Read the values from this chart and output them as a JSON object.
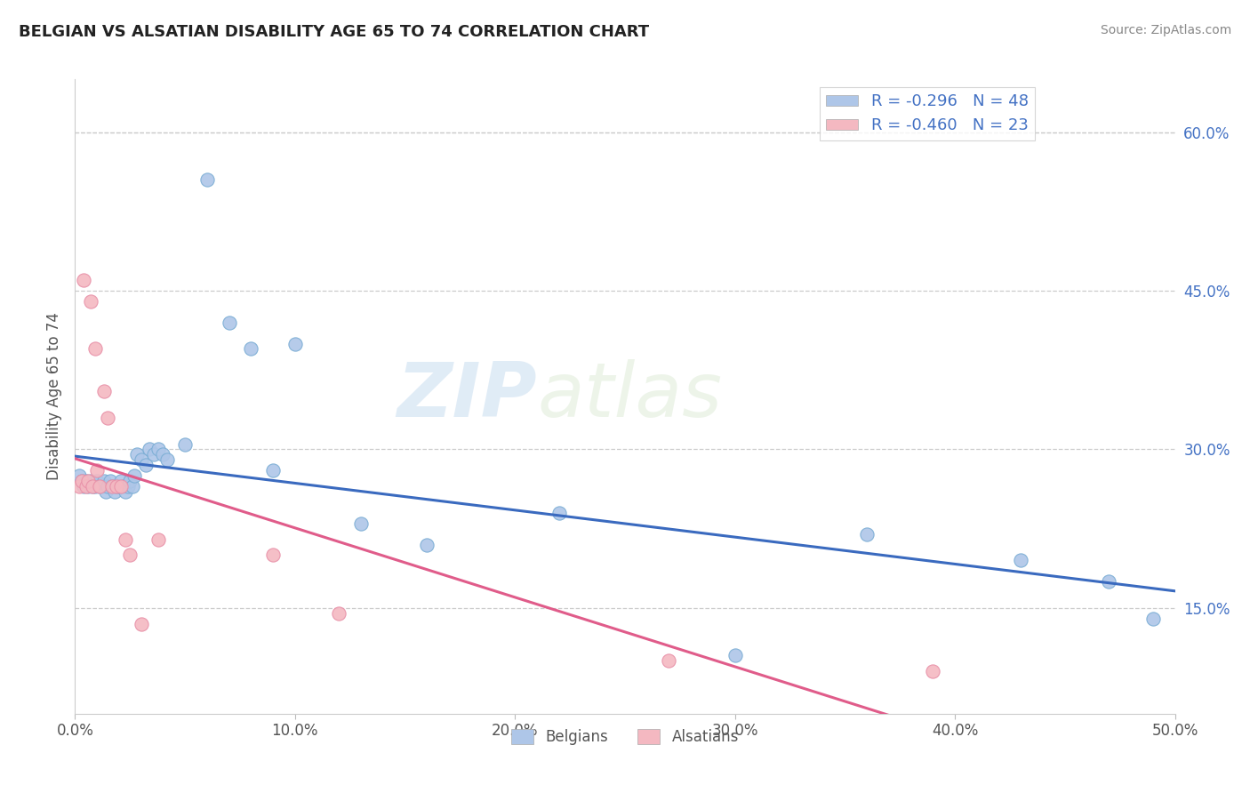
{
  "title": "BELGIAN VS ALSATIAN DISABILITY AGE 65 TO 74 CORRELATION CHART",
  "source": "Source: ZipAtlas.com",
  "ylabel": "Disability Age 65 to 74",
  "xlim": [
    0.0,
    0.5
  ],
  "ylim": [
    0.05,
    0.65
  ],
  "xtick_vals": [
    0.0,
    0.1,
    0.2,
    0.3,
    0.4,
    0.5
  ],
  "ytick_right_values": [
    0.15,
    0.3,
    0.45,
    0.6
  ],
  "legend_labels": [
    "R = -0.296   N = 48",
    "R = -0.460   N = 23"
  ],
  "belgians_color": "#aec6e8",
  "alsatians_color": "#f4b8c1",
  "trend_belgian_color": "#3a6abf",
  "trend_alsatian_color": "#e05c8a",
  "watermark_zip": "ZIP",
  "watermark_atlas": "atlas",
  "belgians_x": [
    0.002,
    0.003,
    0.004,
    0.005,
    0.006,
    0.007,
    0.008,
    0.009,
    0.01,
    0.011,
    0.012,
    0.013,
    0.014,
    0.015,
    0.016,
    0.017,
    0.018,
    0.019,
    0.02,
    0.021,
    0.022,
    0.023,
    0.024,
    0.025,
    0.026,
    0.027,
    0.028,
    0.03,
    0.032,
    0.034,
    0.036,
    0.038,
    0.04,
    0.042,
    0.05,
    0.06,
    0.07,
    0.08,
    0.09,
    0.1,
    0.13,
    0.16,
    0.22,
    0.3,
    0.36,
    0.43,
    0.47,
    0.49
  ],
  "belgians_y": [
    0.275,
    0.27,
    0.265,
    0.27,
    0.265,
    0.27,
    0.265,
    0.265,
    0.27,
    0.265,
    0.265,
    0.27,
    0.26,
    0.265,
    0.27,
    0.265,
    0.26,
    0.265,
    0.265,
    0.27,
    0.265,
    0.26,
    0.265,
    0.27,
    0.265,
    0.275,
    0.295,
    0.29,
    0.285,
    0.3,
    0.295,
    0.3,
    0.295,
    0.29,
    0.305,
    0.555,
    0.42,
    0.395,
    0.28,
    0.4,
    0.23,
    0.21,
    0.24,
    0.105,
    0.22,
    0.195,
    0.175,
    0.14
  ],
  "alsatians_x": [
    0.002,
    0.003,
    0.004,
    0.005,
    0.006,
    0.007,
    0.008,
    0.009,
    0.01,
    0.011,
    0.013,
    0.015,
    0.017,
    0.019,
    0.021,
    0.023,
    0.025,
    0.03,
    0.038,
    0.09,
    0.12,
    0.27,
    0.39
  ],
  "alsatians_y": [
    0.265,
    0.27,
    0.46,
    0.265,
    0.27,
    0.44,
    0.265,
    0.395,
    0.28,
    0.265,
    0.355,
    0.33,
    0.265,
    0.265,
    0.265,
    0.215,
    0.2,
    0.135,
    0.215,
    0.2,
    0.145,
    0.1,
    0.09
  ]
}
